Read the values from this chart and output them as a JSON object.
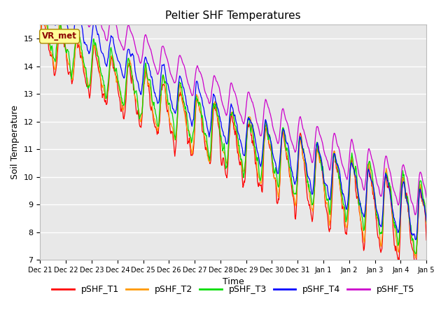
{
  "title": "Peltier SHF Temperatures",
  "ylabel": "Soil Temperature",
  "xlabel": "Time",
  "ylim": [
    7.0,
    15.5
  ],
  "yticks": [
    7.0,
    8.0,
    9.0,
    10.0,
    11.0,
    12.0,
    13.0,
    14.0,
    15.0
  ],
  "xtick_labels": [
    "Dec 21",
    "Dec 22",
    "Dec 23",
    "Dec 24",
    "Dec 25",
    "Dec 26",
    "Dec 27",
    "Dec 28",
    "Dec 29",
    "Dec 30",
    "Dec 31",
    "Jan 1",
    "Jan 2",
    "Jan 3",
    "Jan 4",
    "Jan 5"
  ],
  "vr_met_label": "VR_met",
  "series": [
    {
      "label": "pSHF_T1",
      "color": "#ff0000"
    },
    {
      "label": "pSHF_T2",
      "color": "#ff9900"
    },
    {
      "label": "pSHF_T3",
      "color": "#00dd00"
    },
    {
      "label": "pSHF_T4",
      "color": "#0000ff"
    },
    {
      "label": "pSHF_T5",
      "color": "#cc00cc"
    }
  ],
  "bg_color": "#e8e8e8",
  "title_fontsize": 11,
  "axis_label_fontsize": 9,
  "tick_fontsize": 8,
  "legend_fontsize": 9,
  "linewidth": 0.9
}
